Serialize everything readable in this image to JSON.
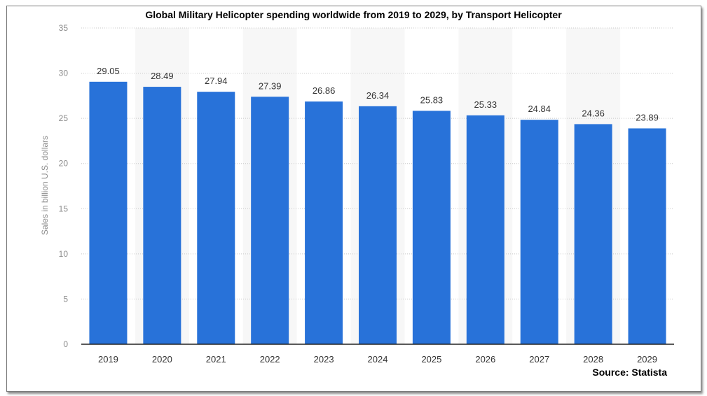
{
  "chart_data": {
    "type": "bar",
    "title": "Global Military Helicopter spending worldwide from 2019 to 2029, by Transport Helicopter",
    "ylabel": "Sales in billion U.S. dollars",
    "xlabel": "",
    "categories": [
      "2019",
      "2020",
      "2021",
      "2022",
      "2023",
      "2024",
      "2025",
      "2026",
      "2027",
      "2028",
      "2029"
    ],
    "values": [
      29.05,
      28.49,
      27.94,
      27.39,
      26.86,
      26.34,
      25.83,
      25.33,
      24.84,
      24.36,
      23.89
    ],
    "value_labels": [
      "29.05",
      "28.49",
      "27.94",
      "27.39",
      "26.86",
      "26.34",
      "25.83",
      "25.33",
      "24.84",
      "24.36",
      "23.89"
    ],
    "yticks": [
      "0",
      "5",
      "10",
      "15",
      "20",
      "25",
      "30",
      "35"
    ],
    "ylim": [
      0,
      35
    ],
    "grid": true,
    "bar_color": "#2872d9",
    "source": "Source: Statista"
  }
}
